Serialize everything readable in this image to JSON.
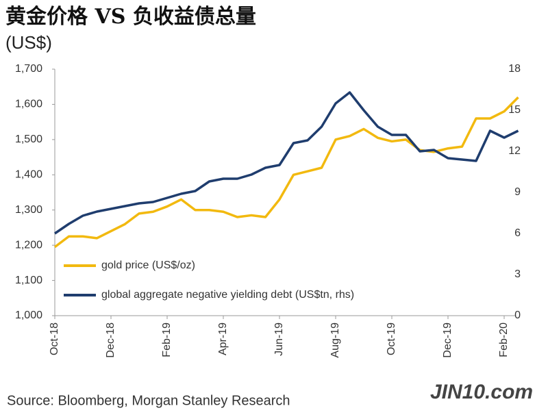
{
  "chart_data": {
    "type": "line",
    "title": "黄金价格 VS 负收益债总量",
    "subtitle": "(US$)",
    "source": "Source: Bloomberg, Morgan Stanley Research",
    "watermark": "JIN10.com",
    "categories": [
      "Oct-18",
      null,
      null,
      null,
      "Dec-18",
      null,
      null,
      null,
      "Feb-19",
      null,
      null,
      null,
      "Apr-19",
      null,
      null,
      null,
      "Jun-19",
      null,
      null,
      null,
      "Aug-19",
      null,
      null,
      null,
      "Oct-19",
      null,
      null,
      null,
      "Dec-19",
      null,
      null,
      null,
      "Feb-20",
      null
    ],
    "series": [
      {
        "name": "gold price (US$/oz)",
        "color": "#f2b90f",
        "values": [
          1195,
          1225,
          1225,
          1220,
          1240,
          1260,
          1290,
          1295,
          1310,
          1330,
          1300,
          1300,
          1295,
          1280,
          1285,
          1280,
          1330,
          1400,
          1410,
          1420,
          1500,
          1510,
          1530,
          1505,
          1495,
          1500,
          1470,
          1465,
          1475,
          1480,
          1560,
          1560,
          1580,
          1620
        ]
      },
      {
        "name": "global aggregate negative yielding debt (US$tn, rhs)",
        "color": "#1f3d6e",
        "axis": "y2",
        "values": [
          6.0,
          6.7,
          7.3,
          7.6,
          7.8,
          8.0,
          8.2,
          8.3,
          8.6,
          8.9,
          9.1,
          9.8,
          10.0,
          10.0,
          10.3,
          10.8,
          11.0,
          12.6,
          12.8,
          13.8,
          15.5,
          16.3,
          15.0,
          13.8,
          13.2,
          13.2,
          12.0,
          12.1,
          11.5,
          11.4,
          11.3,
          13.5,
          13.0,
          13.5
        ]
      }
    ],
    "ylim": [
      1000,
      1700
    ],
    "yticks": [
      {
        "value": 1000,
        "label": "1,000"
      },
      {
        "value": 1100,
        "label": "1,100"
      },
      {
        "value": 1200,
        "label": "1,200"
      },
      {
        "value": 1300,
        "label": "1,300"
      },
      {
        "value": 1400,
        "label": "1,400"
      },
      {
        "value": 1500,
        "label": "1,500"
      },
      {
        "value": 1600,
        "label": "1,600"
      },
      {
        "value": 1700,
        "label": "1,700"
      }
    ],
    "y2lim": [
      0,
      18
    ],
    "y2ticks": [
      0,
      3,
      6,
      9,
      12,
      15,
      18
    ],
    "legend": "lower left"
  }
}
